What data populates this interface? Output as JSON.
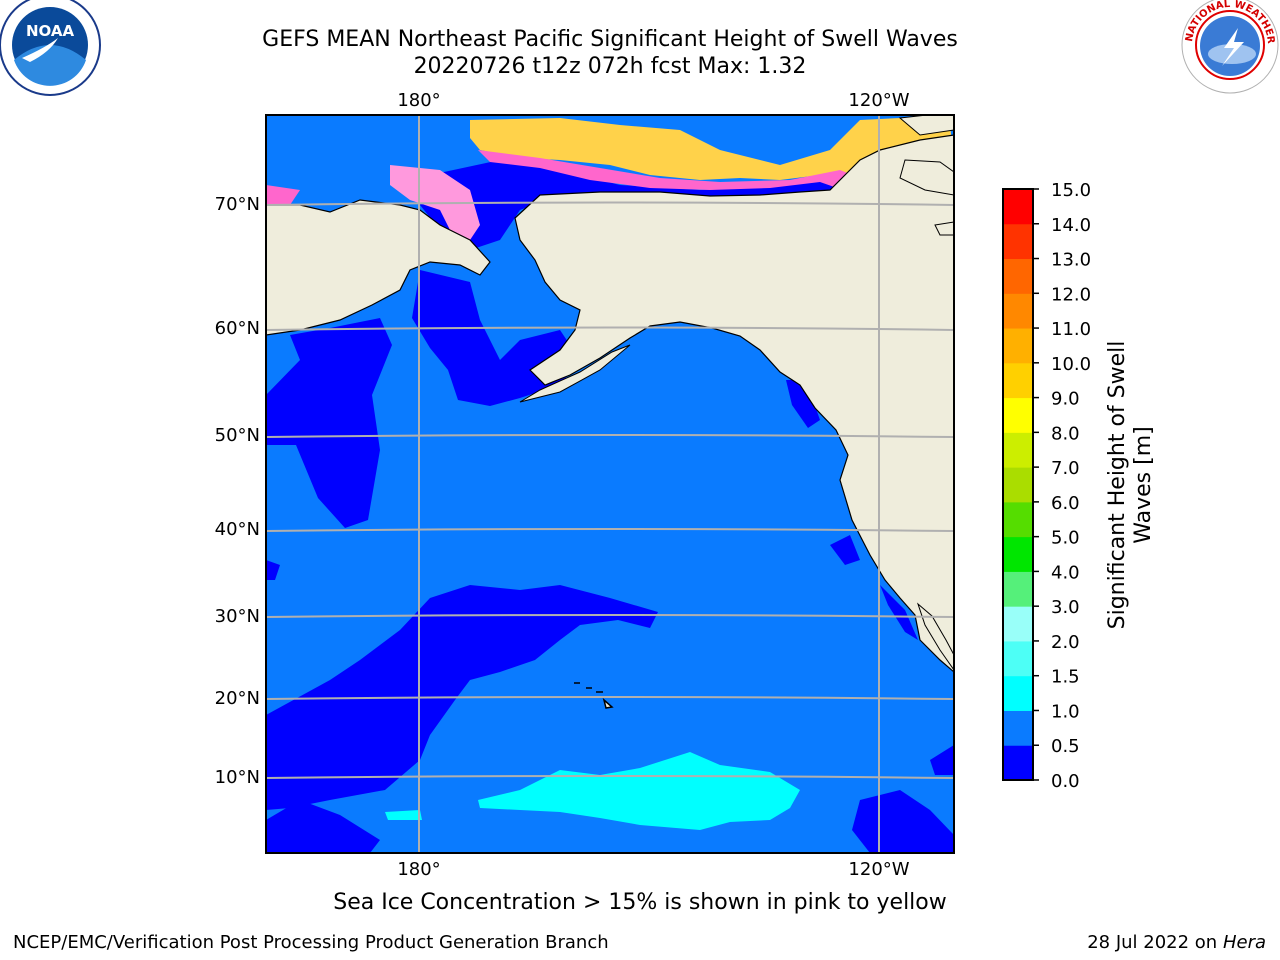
{
  "header": {
    "title_line1": "GEFS MEAN Northeast Pacific Significant Height of Swell Waves",
    "title_line2": "20220726 t12z 072h fcst   Max: 1.32"
  },
  "logos": {
    "left": "NOAA",
    "right": "NATIONAL WEATHER SERVICE"
  },
  "map": {
    "lon_labels_top": [
      "180°",
      "120°W"
    ],
    "lon_labels_bottom": [
      "180°",
      "120°W"
    ],
    "lat_labels": [
      "70°N",
      "60°N",
      "50°N",
      "40°N",
      "30°N",
      "20°N",
      "10°N"
    ],
    "colors": {
      "land": "#efeddc",
      "ocean_low": "#0000ff",
      "ocean_mid": "#0a7bff",
      "ocean_high": "#00ffff",
      "grid": "#b0b0b0"
    }
  },
  "colorbar": {
    "label": "Significant Height of Swell Waves [m]",
    "ticks": [
      "0.0",
      "0.5",
      "1.0",
      "1.5",
      "2.0",
      "3.0",
      "4.0",
      "5.0",
      "6.0",
      "7.0",
      "8.0",
      "9.0",
      "10.0",
      "11.0",
      "12.0",
      "13.0",
      "14.0",
      "15.0"
    ],
    "colors": [
      "#0000ff",
      "#0a7bff",
      "#00ffff",
      "#4dfff6",
      "#99fff9",
      "#55f07a",
      "#00e600",
      "#55dd00",
      "#aadd00",
      "#ccee00",
      "#ffff00",
      "#ffd000",
      "#ffb000",
      "#ff8800",
      "#ff6600",
      "#ff3300",
      "#ff0000"
    ]
  },
  "note": "Sea Ice Concentration > 15% is shown in pink to yellow",
  "footer": {
    "left": "NCEP/EMC/Verification Post Processing Product Generation Branch",
    "right_text": "28 Jul 2022 on",
    "right_host": "Hera"
  }
}
